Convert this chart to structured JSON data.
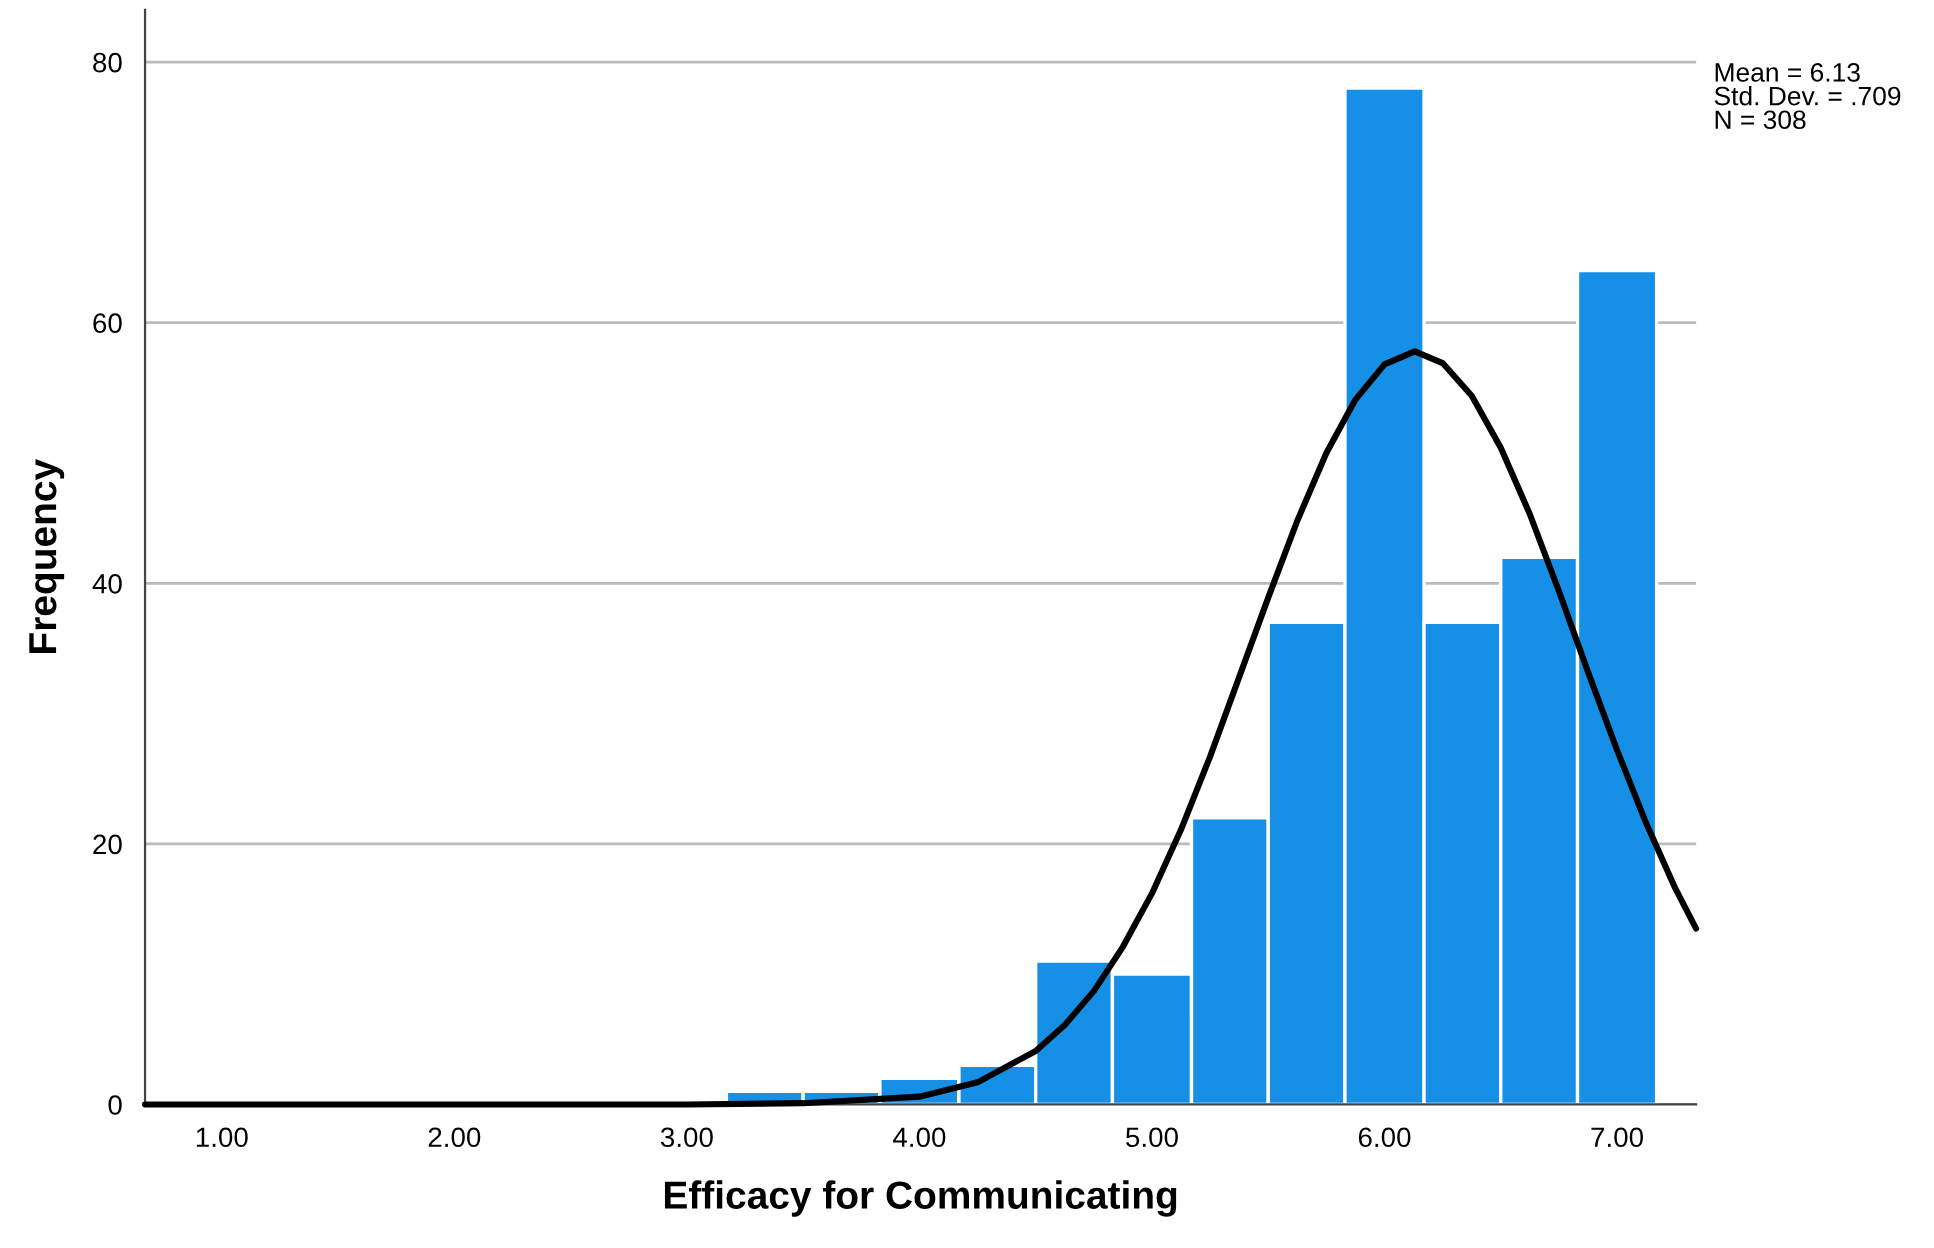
{
  "chart_data": {
    "type": "histogram",
    "xlabel": "Efficacy for Communicating",
    "ylabel": "Frequency",
    "series": [
      {
        "color": "#1590e6",
        "bins": [
          3.17,
          3.5,
          3.83,
          4.17,
          4.5,
          4.83,
          5.17,
          5.5,
          5.83,
          6.17,
          6.5,
          6.83,
          7.17
        ],
        "values": [
          1,
          1,
          2,
          3,
          11,
          10,
          22,
          37,
          78,
          37,
          42,
          64
        ]
      },
      {
        "type": "line",
        "color": "#000000",
        "x": [
          0.67,
          1.0,
          2.0,
          3.0,
          3.5,
          4.0,
          4.25,
          4.5,
          4.625,
          4.75,
          4.875,
          5.0,
          5.125,
          5.25,
          5.375,
          5.5,
          5.625,
          5.75,
          5.875,
          6.0,
          6.13,
          6.25,
          6.375,
          6.5,
          6.625,
          6.75,
          6.875,
          7.0,
          7.125,
          7.25,
          7.34
        ],
        "values": [
          0,
          0,
          0,
          0,
          0.1,
          0.6,
          1.7,
          4.1,
          6.1,
          8.7,
          12.1,
          16.2,
          21.1,
          26.7,
          32.8,
          38.9,
          44.8,
          50.0,
          54.1,
          56.8,
          57.8,
          56.9,
          54.4,
          50.4,
          45.3,
          39.4,
          33.2,
          27.2,
          21.6,
          16.6,
          13.5
        ]
      }
    ],
    "xlim": [
      0.67,
      7.34
    ],
    "xticks": [
      {
        "value": 1,
        "label": "1.00"
      },
      {
        "value": 2,
        "label": "2.00"
      },
      {
        "value": 3,
        "label": "3.00"
      },
      {
        "value": 4,
        "label": "4.00"
      },
      {
        "value": 5,
        "label": "5.00"
      },
      {
        "value": 6,
        "label": "6.00"
      },
      {
        "value": 7,
        "label": "7.00"
      }
    ],
    "ylim": [
      0,
      84
    ],
    "yticks": [
      0,
      20,
      40,
      60,
      80
    ],
    "grid": "y",
    "legend": false,
    "marker": "none",
    "line_style": "solid",
    "annotations": [
      "Mean = 6.13\nStd. Dev. = .709\nN = 308"
    ]
  }
}
